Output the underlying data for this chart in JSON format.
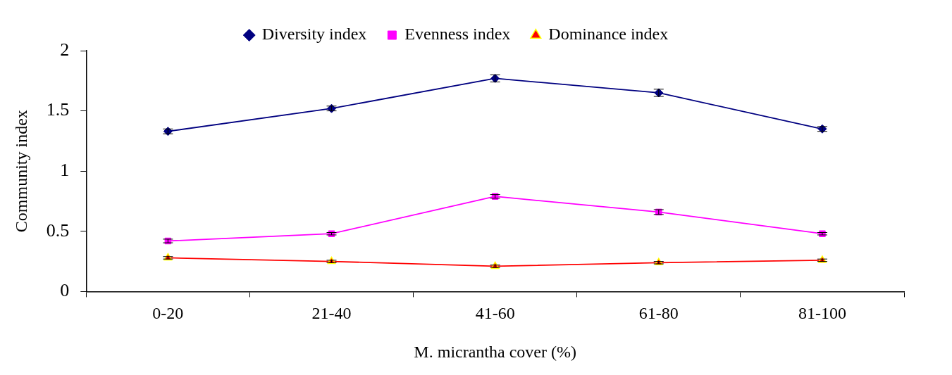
{
  "chart_data": {
    "type": "line",
    "xlabel": "M. micrantha cover (%)",
    "ylabel": "Community index",
    "categories": [
      "0-20",
      "21-40",
      "41-60",
      "61-80",
      "81-100"
    ],
    "series": [
      {
        "name": "Diversity index",
        "color": "#000080",
        "marker": "diamond",
        "values": [
          1.33,
          1.52,
          1.77,
          1.65,
          1.35
        ],
        "errors": [
          0.02,
          0.02,
          0.03,
          0.03,
          0.02
        ]
      },
      {
        "name": "Evenness index",
        "color": "#ff00ff",
        "marker": "square",
        "values": [
          0.42,
          0.48,
          0.79,
          0.66,
          0.48
        ],
        "errors": [
          0.015,
          0.01,
          0.015,
          0.02,
          0.01
        ]
      },
      {
        "name": "Dominance index",
        "color": "#ff0000",
        "marker": "triangle",
        "values": [
          0.28,
          0.25,
          0.21,
          0.24,
          0.26
        ],
        "errors": [
          0.01,
          0.01,
          0.01,
          0.01,
          0.01
        ]
      }
    ],
    "ylim": [
      0,
      2
    ],
    "yticks": [
      0,
      {
        "value": 0.5,
        "label": "0.5"
      },
      1,
      {
        "value": 1.5,
        "label": "1.5"
      },
      2
    ],
    "grid": false,
    "legend": "top",
    "line_style": "solid"
  }
}
